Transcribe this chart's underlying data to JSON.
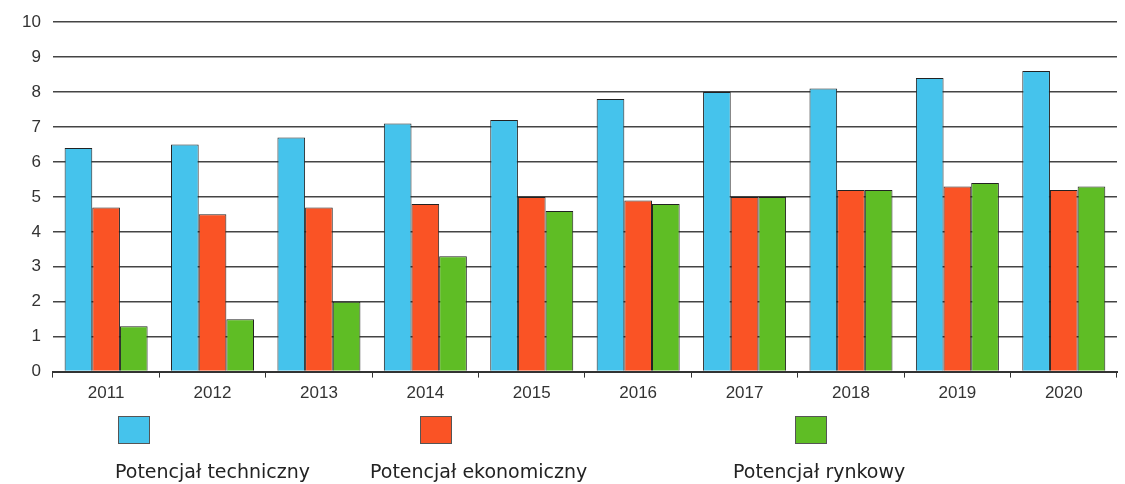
{
  "chart_data": {
    "type": "bar",
    "categories": [
      "2011",
      "2012",
      "2013",
      "2014",
      "2015",
      "2016",
      "2017",
      "2018",
      "2019",
      "2020"
    ],
    "series": [
      {
        "name": "Potencjał techniczny",
        "color": "#45c3ec",
        "values": [
          6.4,
          6.5,
          6.7,
          7.1,
          7.2,
          7.8,
          8.0,
          8.1,
          8.4,
          8.6
        ]
      },
      {
        "name": "Potencjał ekonomiczny",
        "color": "#fa5325",
        "values": [
          4.7,
          4.5,
          4.7,
          4.8,
          5.0,
          4.9,
          5.0,
          5.2,
          5.3,
          5.2
        ]
      },
      {
        "name": "Potencjał rynkowy",
        "color": "#5fbd25",
        "values": [
          1.3,
          1.5,
          2.0,
          3.3,
          4.6,
          4.8,
          5.0,
          5.2,
          5.4,
          5.3
        ]
      }
    ],
    "ylim": [
      0,
      10
    ],
    "yticks": [
      0,
      1,
      2,
      3,
      4,
      5,
      6,
      7,
      8,
      9,
      10
    ],
    "grid": "y",
    "legend": "bottom"
  }
}
